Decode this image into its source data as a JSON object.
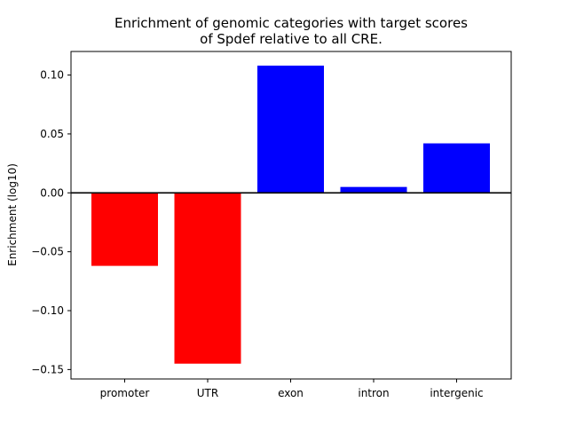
{
  "chart_data": {
    "type": "bar",
    "title_lines": [
      "Enrichment of genomic categories with target scores",
      "of Spdef relative to all CRE."
    ],
    "xlabel": "",
    "ylabel": "Enrichment (log10)",
    "categories": [
      "promoter",
      "UTR",
      "exon",
      "intron",
      "intergenic"
    ],
    "values": [
      -0.062,
      -0.145,
      0.108,
      0.005,
      0.042
    ],
    "ylim": [
      -0.158,
      0.12
    ],
    "yticks": [
      0.1,
      0.05,
      0.0,
      -0.05,
      -0.1,
      -0.15
    ],
    "ytick_labels": [
      "0.10",
      "0.05",
      "0.00",
      "−0.05",
      "−0.10",
      "−0.15"
    ],
    "grid": false,
    "legend": "none",
    "colors": {
      "positive": "#0000ff",
      "negative": "#ff0000",
      "zero_line": "#000000"
    }
  }
}
